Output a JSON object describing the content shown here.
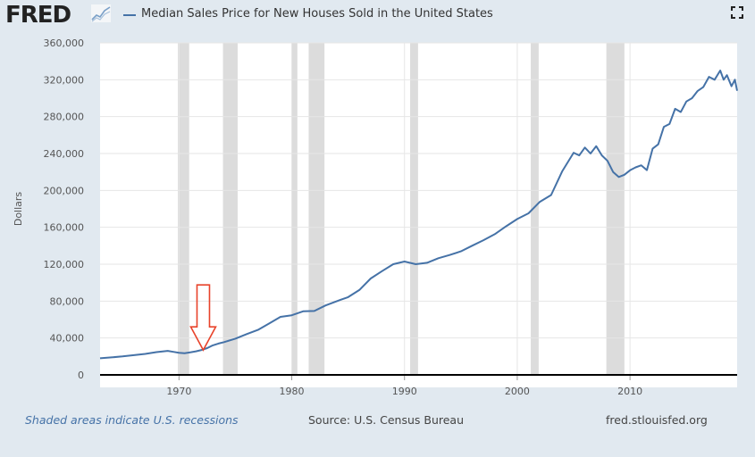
{
  "header": {
    "logo_text": "FRED",
    "legend_label": "Median Sales Price for New Houses Sold in the United States",
    "logo_icon": "fred-chart-logo-icon",
    "fullscreen_icon": "fullscreen-icon"
  },
  "footer": {
    "recession_note": "Shaded areas indicate U.S. recessions",
    "source": "Source: U.S. Census Bureau",
    "site": "fred.stlouisfed.org"
  },
  "colors": {
    "series": "#4572a7",
    "recession": "#dcdcdc",
    "annotation_arrow": "#e8432b"
  },
  "chart_data": {
    "type": "line",
    "title": "",
    "xlabel": "",
    "ylabel": "Dollars",
    "xlim": [
      1963.0,
      2019.5
    ],
    "ylim": [
      0,
      360000
    ],
    "y_ticks": [
      "0",
      "40,000",
      "80,000",
      "120,000",
      "160,000",
      "200,000",
      "240,000",
      "280,000",
      "320,000",
      "360,000"
    ],
    "y_tick_values": [
      0,
      40000,
      80000,
      120000,
      160000,
      200000,
      240000,
      280000,
      320000,
      360000
    ],
    "x_ticks": [
      "1970",
      "1980",
      "1990",
      "2000",
      "2010"
    ],
    "x_tick_values": [
      1970,
      1980,
      1990,
      2000,
      2010
    ],
    "grid": true,
    "recessions": [
      [
        1969.9,
        1970.9
      ],
      [
        1973.9,
        1975.2
      ],
      [
        1980.0,
        1980.5
      ],
      [
        1981.5,
        1982.9
      ],
      [
        1990.5,
        1991.2
      ],
      [
        2001.2,
        2001.9
      ],
      [
        2007.9,
        2009.5
      ]
    ],
    "annotation": {
      "type": "arrow",
      "target_year": 1971.2,
      "target_value": 25000
    },
    "series": [
      {
        "name": "Median Sales Price for New Houses Sold in the United States",
        "x": [
          1963,
          1964,
          1965,
          1966,
          1967,
          1968,
          1969,
          1969.5,
          1970,
          1970.5,
          1971,
          1971.5,
          1972,
          1972.5,
          1973,
          1973.5,
          1974,
          1975,
          1976,
          1977,
          1978,
          1979,
          1980,
          1981,
          1982,
          1983,
          1984,
          1985,
          1986,
          1987,
          1988,
          1989,
          1990,
          1991,
          1992,
          1993,
          1994,
          1995,
          1996,
          1997,
          1998,
          1999,
          2000,
          2001,
          2002,
          2003,
          2004,
          2005,
          2005.5,
          2006,
          2006.5,
          2007,
          2007.5,
          2008,
          2008.5,
          2009,
          2009.5,
          2010,
          2010.5,
          2011,
          2011.5,
          2012,
          2012.5,
          2013,
          2013.5,
          2014,
          2014.5,
          2015,
          2015.5,
          2016,
          2016.5,
          2017,
          2017.5,
          2018,
          2018.3,
          2018.6,
          2019,
          2019.3,
          2019.5
        ],
        "values": [
          18000,
          19000,
          20000,
          21400,
          22700,
          24700,
          26000,
          25000,
          24000,
          23500,
          24500,
          25500,
          27000,
          29000,
          32000,
          34000,
          35500,
          39300,
          44200,
          48800,
          55700,
          62900,
          64600,
          68900,
          69300,
          75300,
          79900,
          84300,
          92000,
          104500,
          112500,
          120000,
          122900,
          120000,
          121500,
          126500,
          130000,
          133900,
          140000,
          146000,
          152500,
          161000,
          169000,
          175200,
          187600,
          195000,
          221000,
          240900,
          238000,
          246500,
          240000,
          247900,
          238000,
          232100,
          220000,
          214500,
          217000,
          221800,
          225000,
          227200,
          222000,
          245200,
          250000,
          268900,
          272000,
          288500,
          285000,
          296400,
          300000,
          307800,
          312000,
          323100,
          320000,
          330000,
          320000,
          325000,
          313000,
          320000,
          308000
        ]
      }
    ]
  }
}
